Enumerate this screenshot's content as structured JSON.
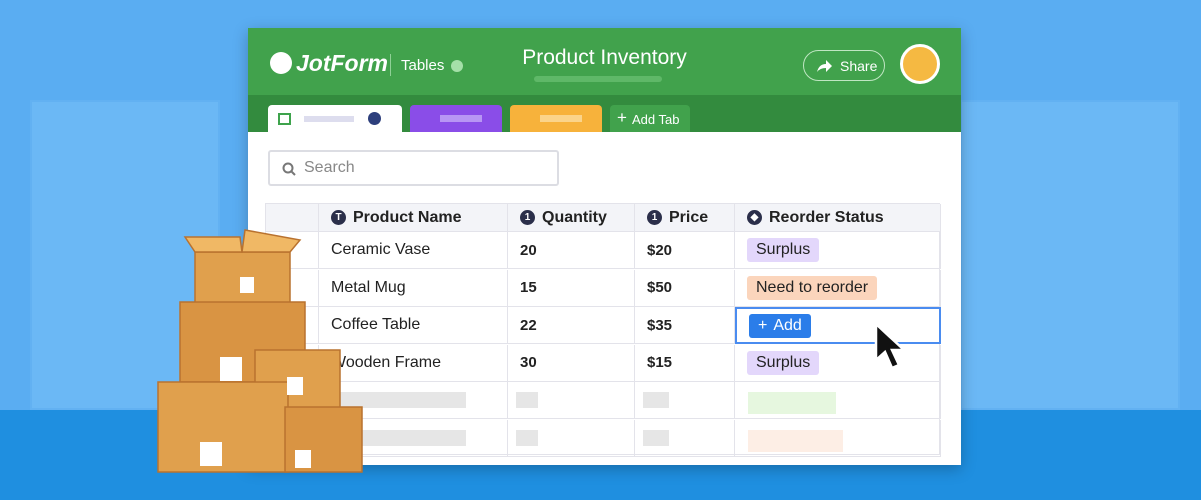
{
  "header": {
    "logo": "JotForm",
    "app": "Tables",
    "title": "Product Inventory",
    "share": "Share"
  },
  "tabs": {
    "add_tab": "Add Tab"
  },
  "search": {
    "placeholder": "Search"
  },
  "table": {
    "columns": [
      "Product Name",
      "Quantity",
      "Price",
      "Reorder Status"
    ],
    "rows": [
      [
        "Ceramic Vase",
        "20",
        "$20",
        "Surplus"
      ],
      [
        "Metal Mug",
        "15",
        "$50",
        "Need to reorder"
      ],
      [
        "Coffee Table",
        "22",
        "$35",
        "Add"
      ],
      [
        "Wooden Frame",
        "30",
        "$15",
        "Surplus"
      ]
    ]
  }
}
